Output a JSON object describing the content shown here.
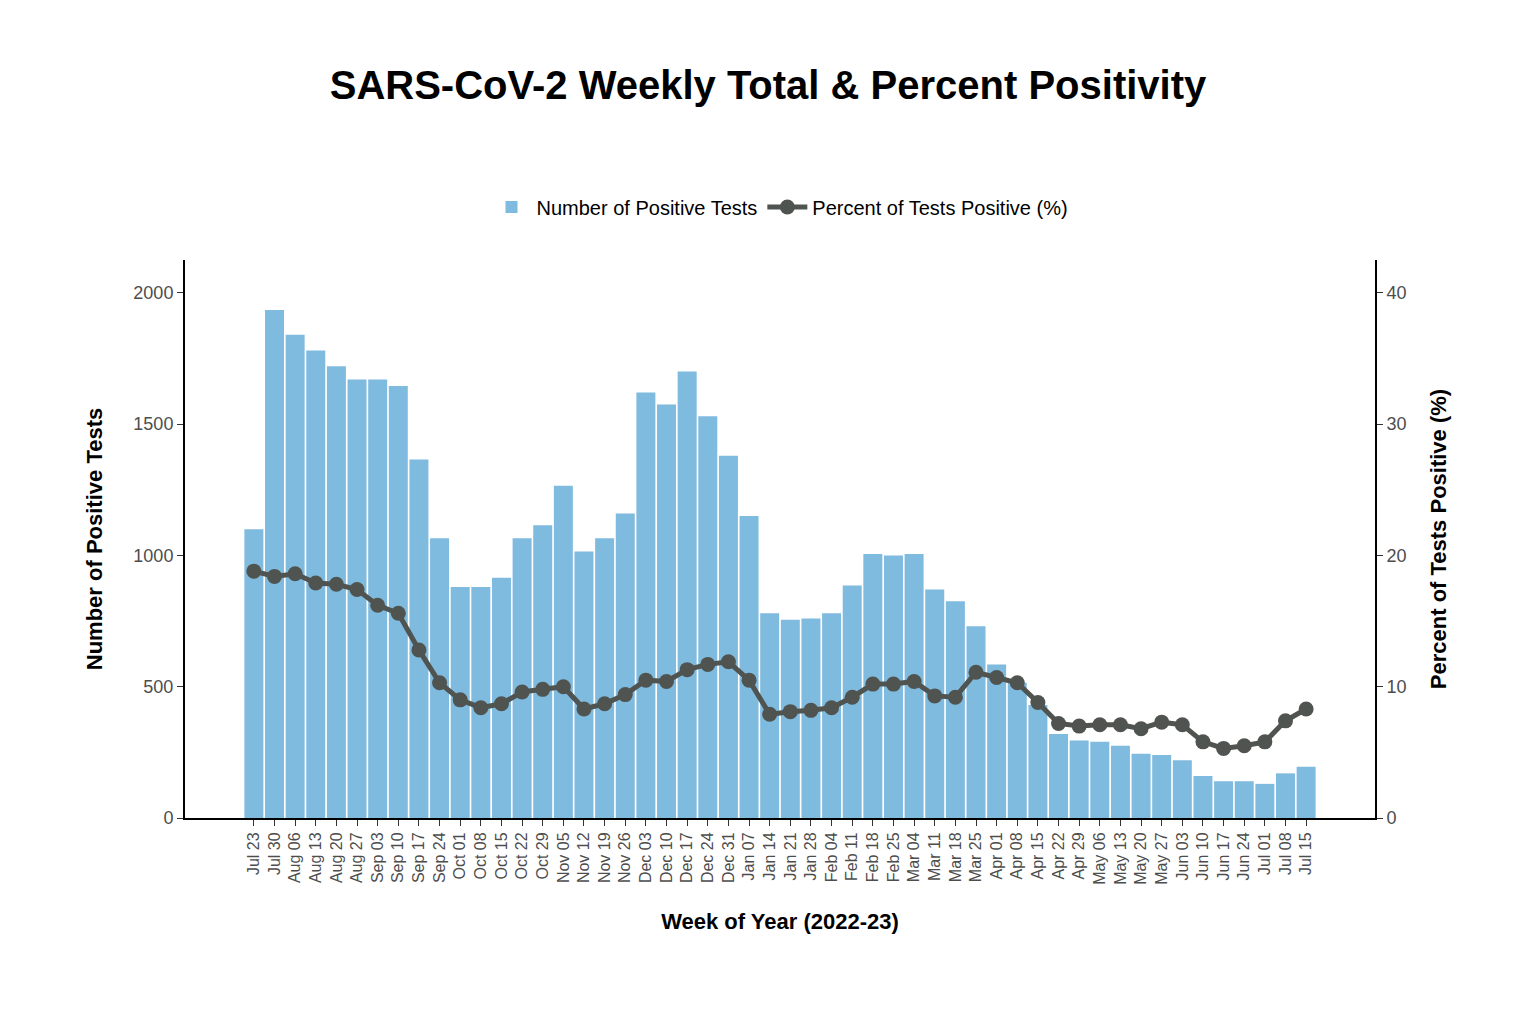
{
  "chart_data": {
    "type": "bar",
    "title": "SARS-CoV-2 Weekly Total & Percent Positivity",
    "x_label": "Week of Year (2022-23)",
    "y_label": "Number of Positive Tests",
    "y2_label": "Percent of Tests Positive (%)",
    "categories": [
      "Jul 23",
      "Jul 30",
      "Aug 06",
      "Aug 13",
      "Aug 20",
      "Aug 27",
      "Sep 03",
      "Sep 10",
      "Sep 17",
      "Sep 24",
      "Oct 01",
      "Oct 08",
      "Oct 15",
      "Oct 22",
      "Oct 29",
      "Nov 05",
      "Nov 12",
      "Nov 19",
      "Nov 26",
      "Dec 03",
      "Dec 10",
      "Dec 17",
      "Dec 24",
      "Dec 31",
      "Jan 07",
      "Jan 14",
      "Jan 21",
      "Jan 28",
      "Feb 04",
      "Feb 11",
      "Feb 18",
      "Feb 25",
      "Mar 04",
      "Mar 11",
      "Mar 18",
      "Mar 25",
      "Apr 01",
      "Apr 08",
      "Apr 15",
      "Apr 22",
      "Apr 29",
      "May 06",
      "May 13",
      "May 20",
      "May 27",
      "Jun 03",
      "Jun 10",
      "Jun 17",
      "Jun 24",
      "Jul 01",
      "Jul 08",
      "Jul 15"
    ],
    "series": [
      {
        "name": "Number of Positive Tests",
        "type": "bar",
        "color": "#7fbadf",
        "values": [
          1100,
          1935,
          1840,
          1780,
          1720,
          1670,
          1670,
          1645,
          1365,
          1065,
          880,
          880,
          915,
          1065,
          1115,
          1265,
          1015,
          1065,
          1160,
          1620,
          1575,
          1700,
          1530,
          1380,
          1150,
          780,
          755,
          760,
          780,
          885,
          1005,
          1000,
          1005,
          870,
          825,
          730,
          585,
          515,
          430,
          320,
          295,
          290,
          275,
          245,
          240,
          220,
          160,
          140,
          140,
          130,
          170,
          195
        ]
      },
      {
        "name": "Percent of Tests Positive (%)",
        "type": "line",
        "axis": "y2",
        "color": "#505450",
        "marker": "circle",
        "line_style": "solid",
        "values": [
          18.8,
          18.4,
          18.6,
          17.9,
          17.8,
          17.4,
          16.2,
          15.6,
          12.8,
          10.3,
          9.0,
          8.4,
          8.7,
          9.6,
          9.8,
          10.0,
          8.3,
          8.7,
          9.4,
          10.5,
          10.4,
          11.3,
          11.7,
          11.9,
          10.5,
          7.9,
          8.1,
          8.2,
          8.4,
          9.2,
          10.2,
          10.2,
          10.4,
          9.3,
          9.2,
          11.1,
          10.7,
          10.3,
          8.8,
          7.2,
          7.0,
          7.1,
          7.1,
          6.8,
          7.3,
          7.1,
          5.8,
          5.3,
          5.5,
          5.8,
          7.4,
          8.3
        ]
      }
    ],
    "ylim": [
      0,
      2125
    ],
    "yticks": [
      0,
      500,
      1000,
      1500,
      2000
    ],
    "y2lim": [
      0,
      42.5
    ],
    "y2ticks": [
      0,
      10,
      20,
      30,
      40
    ],
    "grid": false,
    "legend": "top"
  }
}
